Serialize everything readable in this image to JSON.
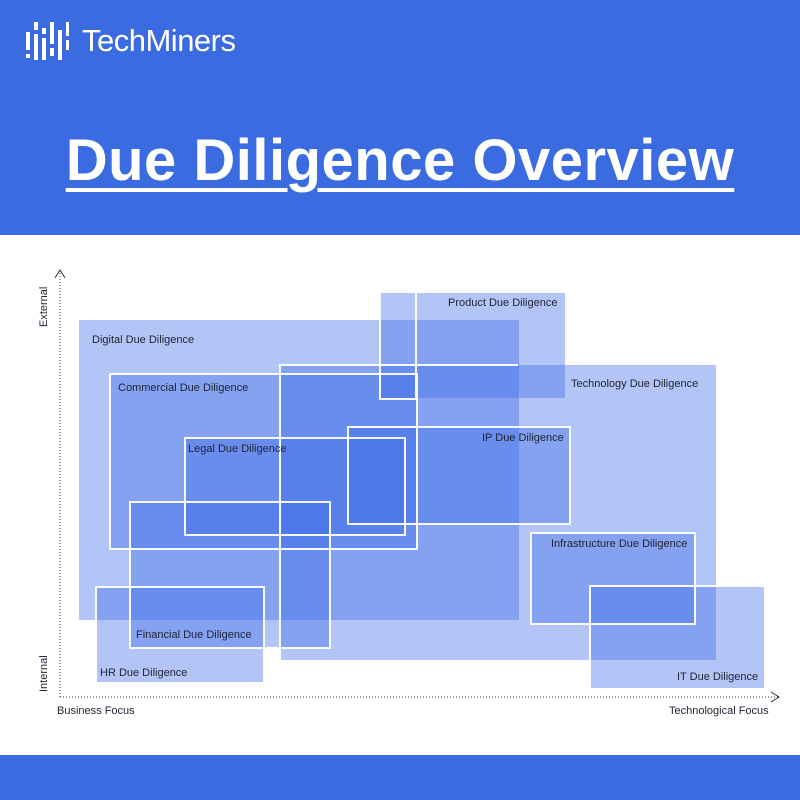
{
  "brand": {
    "name": "TechMiners",
    "logo_icon": "techminers-logo-icon"
  },
  "title": "Due Diligence Overview",
  "colors": {
    "header_bg": "#3a6be0",
    "box_fill": "#3e6ee8",
    "box_outline": "#ffffff"
  },
  "axes": {
    "y_top": "External",
    "y_bottom": "Internal",
    "x_left": "Business Focus",
    "x_right": "Technological Focus"
  },
  "areas": {
    "digital": "Digital Due Diligence",
    "product": "Product Due Diligence",
    "commercial": "Commercial Due Diligence",
    "technology": "Technology Due Diligence",
    "legal": "Legal Due Diligence",
    "ip": "IP Due Diligence",
    "infrastructure": "Infrastructure Due Diligence",
    "financial": "Financial Due Diligence",
    "hr": "HR Due Diligence",
    "it": "IT Due Diligence"
  }
}
